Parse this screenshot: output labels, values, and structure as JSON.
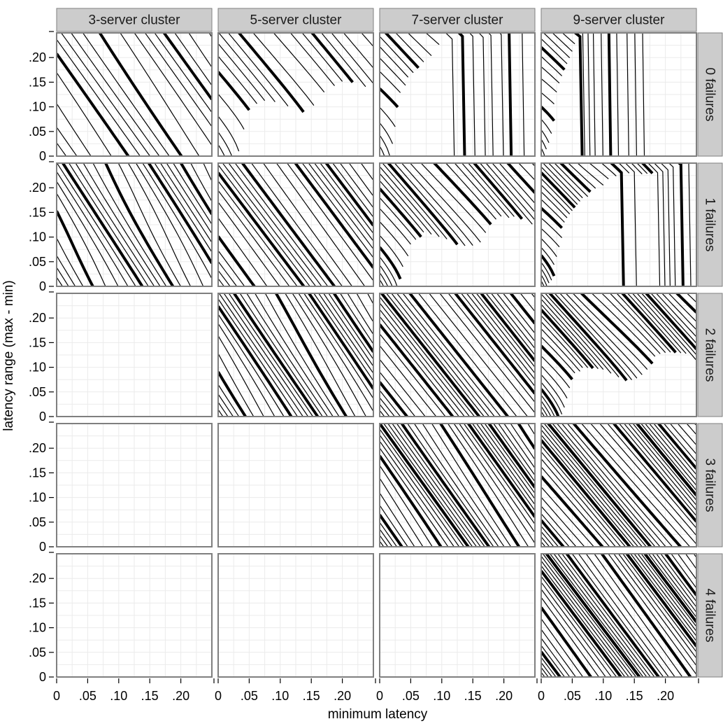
{
  "chart_data": {
    "type": "contour",
    "xlabel": "minimum latency",
    "ylabel": "latency range (max - min)",
    "xlim": [
      0,
      0.25
    ],
    "ylim": [
      0,
      0.25
    ],
    "x_ticks": [
      {
        "value": 0,
        "label": "0"
      },
      {
        "value": 0.05,
        "label": ".05"
      },
      {
        "value": 0.1,
        "label": ".10"
      },
      {
        "value": 0.15,
        "label": ".15"
      },
      {
        "value": 0.2,
        "label": ".20"
      }
    ],
    "y_ticks": [
      {
        "value": 0,
        "label": "0"
      },
      {
        "value": 0.05,
        "label": ".05"
      },
      {
        "value": 0.1,
        "label": ".10"
      },
      {
        "value": 0.15,
        "label": ".15"
      },
      {
        "value": 0.2,
        "label": ".20"
      }
    ],
    "columns": [
      "3-server cluster",
      "5-server cluster",
      "7-server cluster",
      "9-server cluster"
    ],
    "rows": [
      "0 failures",
      "1 failures",
      "2 failures",
      "3 failures",
      "4 failures"
    ],
    "panels": [
      {
        "row": 0,
        "col": 0,
        "has_data": true,
        "contour_count": 22
      },
      {
        "row": 0,
        "col": 1,
        "has_data": true,
        "contour_count": 22
      },
      {
        "row": 0,
        "col": 2,
        "has_data": true,
        "contour_count": 22
      },
      {
        "row": 0,
        "col": 3,
        "has_data": true,
        "contour_count": 24
      },
      {
        "row": 1,
        "col": 0,
        "has_data": true,
        "contour_count": 36
      },
      {
        "row": 1,
        "col": 1,
        "has_data": true,
        "contour_count": 36
      },
      {
        "row": 1,
        "col": 2,
        "has_data": true,
        "contour_count": 36
      },
      {
        "row": 1,
        "col": 3,
        "has_data": true,
        "contour_count": 38
      },
      {
        "row": 2,
        "col": 0,
        "has_data": false
      },
      {
        "row": 2,
        "col": 1,
        "has_data": true,
        "contour_count": 44
      },
      {
        "row": 2,
        "col": 2,
        "has_data": true,
        "contour_count": 44
      },
      {
        "row": 2,
        "col": 3,
        "has_data": true,
        "contour_count": 46
      },
      {
        "row": 3,
        "col": 0,
        "has_data": false
      },
      {
        "row": 3,
        "col": 1,
        "has_data": false
      },
      {
        "row": 3,
        "col": 2,
        "has_data": true,
        "contour_count": 52
      },
      {
        "row": 3,
        "col": 3,
        "has_data": true,
        "contour_count": 52
      },
      {
        "row": 4,
        "col": 0,
        "has_data": false
      },
      {
        "row": 4,
        "col": 1,
        "has_data": false
      },
      {
        "row": 4,
        "col": 2,
        "has_data": false
      },
      {
        "row": 4,
        "col": 3,
        "has_data": true,
        "contour_count": 60
      }
    ],
    "colors": {
      "contour": "#000000",
      "strip_fill": "#cccccc",
      "strip_border": "#7f7f7f",
      "panel_border": "#7f7f7f",
      "grid": "#ebebeb"
    },
    "grid": true
  }
}
